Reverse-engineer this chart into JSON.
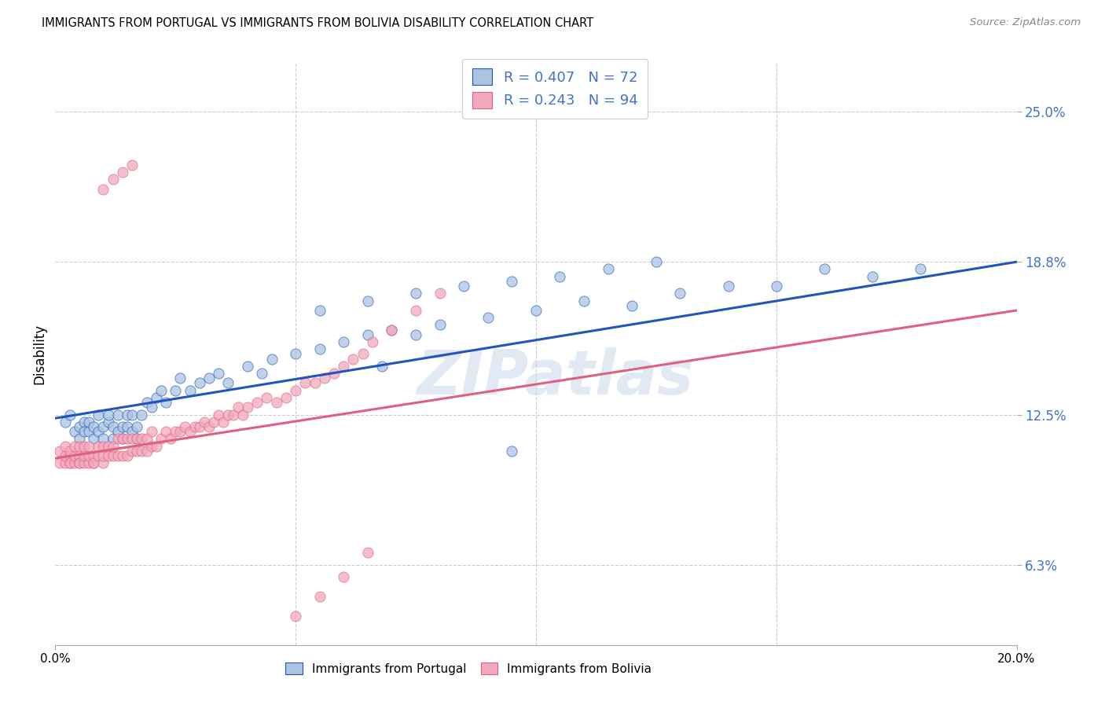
{
  "title": "IMMIGRANTS FROM PORTUGAL VS IMMIGRANTS FROM BOLIVIA DISABILITY CORRELATION CHART",
  "source": "Source: ZipAtlas.com",
  "ylabel": "Disability",
  "ytick_labels": [
    "6.3%",
    "12.5%",
    "18.8%",
    "25.0%"
  ],
  "ytick_values": [
    0.063,
    0.125,
    0.188,
    0.25
  ],
  "xlim": [
    0.0,
    0.2
  ],
  "ylim": [
    0.03,
    0.27
  ],
  "color_portugal": "#aac4e2",
  "color_bolivia": "#f2a8bc",
  "color_blue_text": "#4472c4",
  "color_line_portugal": "#2255bb",
  "color_line_bolivia": "#e06080",
  "watermark_color": "#c8d8ec",
  "portugal_x": [
    0.002,
    0.003,
    0.004,
    0.005,
    0.005,
    0.006,
    0.006,
    0.007,
    0.007,
    0.008,
    0.008,
    0.009,
    0.009,
    0.01,
    0.01,
    0.011,
    0.011,
    0.012,
    0.012,
    0.013,
    0.013,
    0.014,
    0.014,
    0.015,
    0.015,
    0.016,
    0.016,
    0.017,
    0.017,
    0.018,
    0.019,
    0.02,
    0.021,
    0.022,
    0.023,
    0.025,
    0.026,
    0.028,
    0.03,
    0.032,
    0.034,
    0.036,
    0.04,
    0.043,
    0.045,
    0.05,
    0.055,
    0.06,
    0.065,
    0.068,
    0.07,
    0.075,
    0.08,
    0.09,
    0.095,
    0.1,
    0.11,
    0.12,
    0.13,
    0.14,
    0.15,
    0.16,
    0.17,
    0.18,
    0.055,
    0.065,
    0.075,
    0.085,
    0.095,
    0.105,
    0.115,
    0.125
  ],
  "portugal_y": [
    0.122,
    0.125,
    0.118,
    0.12,
    0.115,
    0.122,
    0.118,
    0.118,
    0.122,
    0.115,
    0.12,
    0.118,
    0.125,
    0.12,
    0.115,
    0.122,
    0.125,
    0.115,
    0.12,
    0.118,
    0.125,
    0.12,
    0.115,
    0.125,
    0.12,
    0.118,
    0.125,
    0.12,
    0.115,
    0.125,
    0.13,
    0.128,
    0.132,
    0.135,
    0.13,
    0.135,
    0.14,
    0.135,
    0.138,
    0.14,
    0.142,
    0.138,
    0.145,
    0.142,
    0.148,
    0.15,
    0.152,
    0.155,
    0.158,
    0.145,
    0.16,
    0.158,
    0.162,
    0.165,
    0.11,
    0.168,
    0.172,
    0.17,
    0.175,
    0.178,
    0.178,
    0.185,
    0.182,
    0.185,
    0.168,
    0.172,
    0.175,
    0.178,
    0.18,
    0.182,
    0.185,
    0.188
  ],
  "bolivia_x": [
    0.001,
    0.001,
    0.002,
    0.002,
    0.002,
    0.003,
    0.003,
    0.003,
    0.003,
    0.004,
    0.004,
    0.004,
    0.005,
    0.005,
    0.005,
    0.005,
    0.006,
    0.006,
    0.006,
    0.007,
    0.007,
    0.007,
    0.008,
    0.008,
    0.008,
    0.009,
    0.009,
    0.01,
    0.01,
    0.01,
    0.011,
    0.011,
    0.012,
    0.012,
    0.013,
    0.013,
    0.014,
    0.014,
    0.015,
    0.015,
    0.016,
    0.016,
    0.017,
    0.017,
    0.018,
    0.018,
    0.019,
    0.019,
    0.02,
    0.02,
    0.021,
    0.022,
    0.023,
    0.024,
    0.025,
    0.026,
    0.027,
    0.028,
    0.029,
    0.03,
    0.031,
    0.032,
    0.033,
    0.034,
    0.035,
    0.036,
    0.037,
    0.038,
    0.039,
    0.04,
    0.042,
    0.044,
    0.046,
    0.048,
    0.05,
    0.052,
    0.054,
    0.056,
    0.058,
    0.06,
    0.062,
    0.064,
    0.066,
    0.07,
    0.075,
    0.08,
    0.05,
    0.055,
    0.06,
    0.065,
    0.01,
    0.012,
    0.014,
    0.016
  ],
  "bolivia_y": [
    0.105,
    0.11,
    0.105,
    0.108,
    0.112,
    0.105,
    0.108,
    0.105,
    0.11,
    0.105,
    0.108,
    0.112,
    0.105,
    0.108,
    0.105,
    0.112,
    0.105,
    0.108,
    0.112,
    0.105,
    0.108,
    0.112,
    0.105,
    0.108,
    0.105,
    0.108,
    0.112,
    0.105,
    0.108,
    0.112,
    0.108,
    0.112,
    0.108,
    0.112,
    0.108,
    0.115,
    0.108,
    0.115,
    0.108,
    0.115,
    0.11,
    0.115,
    0.11,
    0.115,
    0.11,
    0.115,
    0.11,
    0.115,
    0.112,
    0.118,
    0.112,
    0.115,
    0.118,
    0.115,
    0.118,
    0.118,
    0.12,
    0.118,
    0.12,
    0.12,
    0.122,
    0.12,
    0.122,
    0.125,
    0.122,
    0.125,
    0.125,
    0.128,
    0.125,
    0.128,
    0.13,
    0.132,
    0.13,
    0.132,
    0.135,
    0.138,
    0.138,
    0.14,
    0.142,
    0.145,
    0.148,
    0.15,
    0.155,
    0.16,
    0.168,
    0.175,
    0.042,
    0.05,
    0.058,
    0.068,
    0.218,
    0.222,
    0.225,
    0.228
  ]
}
